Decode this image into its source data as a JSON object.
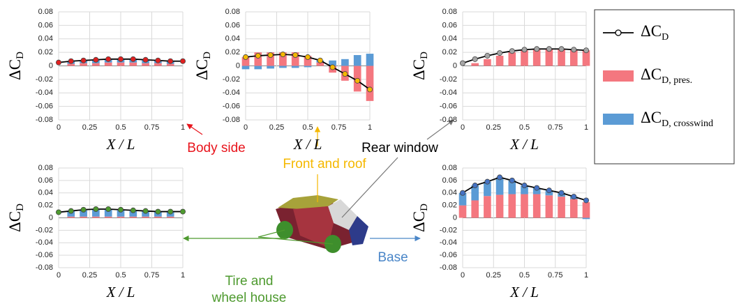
{
  "legend": [
    {
      "name": "ΔC",
      "sub": "D",
      "kind": "line",
      "color": "#000000"
    },
    {
      "name": "ΔC",
      "sub": "D, pres.",
      "kind": "bar",
      "color": "#f4777f"
    },
    {
      "name": "ΔC",
      "sub": "D, crosswind",
      "kind": "bar",
      "color": "#5b9bd5"
    }
  ],
  "chart_data": [
    {
      "type": "combo",
      "annotation": {
        "lines": [
          "Body side"
        ],
        "color": "#e8141c"
      },
      "xlabel": "X / L",
      "ylabel": {
        "text": "ΔC",
        "sub": "D"
      },
      "marker_color": "#e02020",
      "x": [
        0,
        0.1,
        0.2,
        0.3,
        0.4,
        0.5,
        0.6,
        0.7,
        0.8,
        0.9,
        1
      ],
      "series": [
        {
          "values": [
            0.005,
            0.007,
            0.008,
            0.009,
            0.01,
            0.01,
            0.01,
            0.009,
            0.008,
            0.007,
            0.007
          ]
        },
        {
          "values": [
            0,
            0.003,
            0.004,
            0.004,
            0.005,
            0.005,
            0.005,
            0.004,
            0.004,
            0.003,
            0
          ]
        },
        {
          "values": [
            0,
            0.004,
            0.004,
            0.005,
            0.005,
            0.005,
            0.005,
            0.005,
            0.004,
            0.004,
            0
          ]
        }
      ],
      "xlim": [
        0,
        1
      ],
      "xticks": [
        0,
        0.25,
        0.5,
        0.75,
        1
      ],
      "ylim": [
        -0.08,
        0.08
      ],
      "yticks": [
        -0.08,
        -0.06,
        -0.04,
        -0.02,
        0,
        0.02,
        0.04,
        0.06,
        0.08
      ],
      "grid": true
    },
    {
      "type": "combo",
      "annotation": {
        "lines": [
          "Front and roof"
        ],
        "color": "#f5b800"
      },
      "xlabel": "X / L",
      "ylabel": {
        "text": "ΔC",
        "sub": "D"
      },
      "marker_color": "#f5b800",
      "x": [
        0,
        0.1,
        0.2,
        0.3,
        0.4,
        0.5,
        0.6,
        0.7,
        0.8,
        0.9,
        1
      ],
      "series": [
        {
          "values": [
            0.013,
            0.015,
            0.016,
            0.017,
            0.016,
            0.013,
            0.008,
            -0.002,
            -0.012,
            -0.022,
            -0.035
          ]
        },
        {
          "values": [
            0.013,
            0.02,
            0.02,
            0.02,
            0.02,
            0.015,
            0.005,
            -0.01,
            -0.022,
            -0.038,
            -0.052
          ]
        },
        {
          "values": [
            -0.005,
            -0.005,
            -0.004,
            -0.003,
            -0.003,
            -0.002,
            0.003,
            0.008,
            0.01,
            0.016,
            0.018
          ]
        }
      ],
      "xlim": [
        0,
        1
      ],
      "xticks": [
        0,
        0.25,
        0.5,
        0.75,
        1
      ],
      "ylim": [
        -0.08,
        0.08
      ],
      "yticks": [
        -0.08,
        -0.06,
        -0.04,
        -0.02,
        0,
        0.02,
        0.04,
        0.06,
        0.08
      ],
      "grid": true
    },
    {
      "type": "combo",
      "annotation": {
        "lines": [
          "Rear window"
        ],
        "color": "#000000"
      },
      "xlabel": "X / L",
      "ylabel": {
        "text": "ΔC",
        "sub": "D"
      },
      "marker_color": "#a6a6a6",
      "x": [
        0,
        0.1,
        0.2,
        0.3,
        0.4,
        0.5,
        0.6,
        0.7,
        0.8,
        0.9,
        1
      ],
      "series": [
        {
          "values": [
            0.004,
            0.01,
            0.015,
            0.019,
            0.022,
            0.024,
            0.025,
            0.025,
            0.025,
            0.024,
            0.023
          ]
        },
        {
          "values": [
            0,
            0.004,
            0.01,
            0.015,
            0.02,
            0.023,
            0.024,
            0.025,
            0.025,
            0.024,
            0.023
          ]
        },
        {
          "values": [
            0,
            0,
            0,
            0,
            0,
            0,
            0,
            0,
            0,
            0,
            0
          ]
        }
      ],
      "xlim": [
        0,
        1
      ],
      "xticks": [
        0,
        0.25,
        0.5,
        0.75,
        1
      ],
      "ylim": [
        -0.08,
        0.08
      ],
      "yticks": [
        -0.08,
        -0.06,
        -0.04,
        -0.02,
        0,
        0.02,
        0.04,
        0.06,
        0.08
      ],
      "grid": true
    },
    {
      "type": "combo",
      "annotation": {
        "lines": [
          "Tire and",
          "wheel house"
        ],
        "color": "#4e9a2f"
      },
      "xlabel": "X / L",
      "ylabel": {
        "text": "ΔC",
        "sub": "D"
      },
      "marker_color": "#4e9a2f",
      "x": [
        0,
        0.1,
        0.2,
        0.3,
        0.4,
        0.5,
        0.6,
        0.7,
        0.8,
        0.9,
        1
      ],
      "series": [
        {
          "values": [
            0.009,
            0.011,
            0.013,
            0.014,
            0.014,
            0.013,
            0.012,
            0.011,
            0.01,
            0.01,
            0.01
          ]
        },
        {
          "values": [
            0,
            0.002,
            0.002,
            0.002,
            0.002,
            0.002,
            0.002,
            0.002,
            0.002,
            0.002,
            0
          ]
        },
        {
          "values": [
            0,
            0.009,
            0.01,
            0.011,
            0.011,
            0.01,
            0.009,
            0.009,
            0.008,
            0.008,
            0
          ]
        }
      ],
      "xlim": [
        0,
        1
      ],
      "xticks": [
        0,
        0.25,
        0.5,
        0.75,
        1
      ],
      "ylim": [
        -0.08,
        0.08
      ],
      "yticks": [
        -0.08,
        -0.06,
        -0.04,
        -0.02,
        0,
        0.02,
        0.04,
        0.06,
        0.08
      ],
      "grid": true
    },
    {
      "type": "combo",
      "annotation": {
        "lines": [
          "Base"
        ],
        "color": "#4a86c8"
      },
      "xlabel": "X / L",
      "ylabel": {
        "text": "ΔC",
        "sub": "D"
      },
      "marker_color": "#4472c4",
      "x": [
        0,
        0.1,
        0.2,
        0.3,
        0.4,
        0.5,
        0.6,
        0.7,
        0.8,
        0.9,
        1
      ],
      "series": [
        {
          "values": [
            0.04,
            0.052,
            0.058,
            0.065,
            0.06,
            0.052,
            0.048,
            0.044,
            0.04,
            0.034,
            0.028
          ]
        },
        {
          "values": [
            0.02,
            0.028,
            0.035,
            0.037,
            0.038,
            0.038,
            0.038,
            0.036,
            0.034,
            0.03,
            0.025
          ]
        },
        {
          "values": [
            0.02,
            0.024,
            0.023,
            0.028,
            0.022,
            0.014,
            0.01,
            0.008,
            0.006,
            0.004,
            -0.002
          ]
        }
      ],
      "xlim": [
        0,
        1
      ],
      "xticks": [
        0,
        0.25,
        0.5,
        0.75,
        1
      ],
      "ylim": [
        -0.08,
        0.08
      ],
      "yticks": [
        -0.08,
        -0.06,
        -0.04,
        -0.02,
        0,
        0.02,
        0.04,
        0.06,
        0.08
      ],
      "grid": true
    }
  ]
}
